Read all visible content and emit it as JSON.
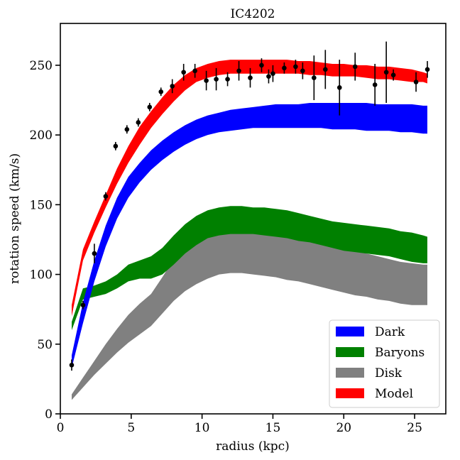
{
  "chart_data": {
    "type": "area",
    "title": "IC4202",
    "xlabel": "radius (kpc)",
    "ylabel": "rotation speed (km/s)",
    "xlim": [
      0,
      27.2
    ],
    "ylim": [
      0,
      280
    ],
    "xticks": [
      0,
      5,
      10,
      15,
      20,
      25
    ],
    "yticks": [
      0,
      50,
      100,
      150,
      200,
      250
    ],
    "grid": false,
    "legend_position": "lower-right",
    "radius": [
      0.8,
      1.6,
      2.4,
      3.2,
      4.0,
      4.8,
      5.6,
      6.4,
      7.2,
      8.0,
      8.8,
      9.6,
      10.4,
      11.2,
      12.0,
      12.8,
      13.6,
      14.4,
      15.2,
      16.0,
      16.8,
      17.6,
      18.4,
      19.2,
      20.0,
      20.8,
      21.6,
      22.4,
      23.2,
      24.0,
      24.8,
      25.6,
      25.9
    ],
    "bands": [
      {
        "name": "Disk",
        "color": "#808080",
        "lower": [
          10,
          19,
          28,
          36,
          44,
          51,
          57,
          63,
          72,
          81,
          88,
          93,
          97,
          100,
          101,
          101,
          100,
          99,
          98,
          96,
          95,
          93,
          91,
          89,
          87,
          85,
          84,
          82,
          81,
          79,
          78,
          78,
          78
        ],
        "upper": [
          14,
          26,
          38,
          50,
          61,
          71,
          79,
          86,
          98,
          111,
          122,
          129,
          134,
          137,
          138,
          138,
          136,
          134,
          132,
          130,
          128,
          126,
          124,
          121,
          119,
          117,
          115,
          113,
          111,
          109,
          108,
          107,
          107
        ]
      },
      {
        "name": "Baryons",
        "color": "#008000",
        "lower": [
          60,
          82,
          84,
          86,
          90,
          95,
          97,
          97,
          100,
          107,
          115,
          121,
          126,
          128,
          129,
          129,
          129,
          128,
          127,
          126,
          124,
          123,
          121,
          119,
          117,
          116,
          115,
          114,
          113,
          111,
          109,
          108,
          108
        ],
        "upper": [
          66,
          90,
          92,
          95,
          100,
          107,
          110,
          113,
          119,
          128,
          136,
          142,
          146,
          148,
          149,
          149,
          148,
          148,
          147,
          146,
          144,
          142,
          140,
          138,
          137,
          136,
          135,
          134,
          133,
          131,
          130,
          128,
          127
        ]
      },
      {
        "name": "Dark",
        "color": "#0000ff",
        "lower": [
          33,
          65,
          95,
          120,
          140,
          155,
          166,
          175,
          182,
          188,
          193,
          197,
          200,
          202,
          203,
          204,
          205,
          205,
          205,
          205,
          205,
          205,
          205,
          204,
          204,
          204,
          203,
          203,
          203,
          202,
          202,
          201,
          201
        ],
        "upper": [
          42,
          80,
          110,
          135,
          155,
          170,
          180,
          189,
          196,
          202,
          207,
          211,
          214,
          216,
          218,
          219,
          220,
          221,
          222,
          222,
          222,
          223,
          223,
          223,
          223,
          223,
          223,
          222,
          222,
          222,
          222,
          221,
          221
        ]
      },
      {
        "name": "Model",
        "color": "#ff0000",
        "lower": [
          70,
          110,
          130,
          148,
          165,
          180,
          193,
          205,
          215,
          224,
          232,
          238,
          241,
          243,
          244,
          244,
          244,
          244,
          244,
          244,
          244,
          243,
          243,
          242,
          242,
          242,
          241,
          240,
          240,
          239,
          238,
          238,
          237
        ],
        "upper": [
          78,
          118,
          138,
          157,
          176,
          192,
          206,
          217,
          227,
          236,
          243,
          248,
          251,
          253,
          254,
          254,
          254,
          254,
          254,
          254,
          253,
          253,
          252,
          251,
          251,
          250,
          250,
          249,
          249,
          248,
          247,
          245,
          244
        ]
      }
    ],
    "legend_order": [
      "Dark",
      "Baryons",
      "Disk",
      "Model"
    ],
    "observed": {
      "name": "observed",
      "color": "#000000",
      "points": [
        {
          "x": 0.8,
          "y": 35,
          "err": 4
        },
        {
          "x": 1.6,
          "y": 78,
          "err": 3
        },
        {
          "x": 2.4,
          "y": 115,
          "err": 7
        },
        {
          "x": 3.2,
          "y": 156,
          "err": 3
        },
        {
          "x": 3.9,
          "y": 192,
          "err": 3
        },
        {
          "x": 4.7,
          "y": 204,
          "err": 3
        },
        {
          "x": 5.5,
          "y": 209,
          "err": 3
        },
        {
          "x": 6.3,
          "y": 220,
          "err": 3
        },
        {
          "x": 7.1,
          "y": 231,
          "err": 3
        },
        {
          "x": 7.9,
          "y": 235,
          "err": 5
        },
        {
          "x": 8.7,
          "y": 245,
          "err": 6
        },
        {
          "x": 9.5,
          "y": 246,
          "err": 5
        },
        {
          "x": 10.3,
          "y": 239,
          "err": 7
        },
        {
          "x": 11.0,
          "y": 240,
          "err": 8
        },
        {
          "x": 11.8,
          "y": 240,
          "err": 5
        },
        {
          "x": 12.6,
          "y": 246,
          "err": 7
        },
        {
          "x": 13.4,
          "y": 241,
          "err": 7
        },
        {
          "x": 14.2,
          "y": 250,
          "err": 5
        },
        {
          "x": 14.7,
          "y": 242,
          "err": 5
        },
        {
          "x": 15.0,
          "y": 244,
          "err": 6
        },
        {
          "x": 15.8,
          "y": 248,
          "err": 4
        },
        {
          "x": 16.6,
          "y": 249,
          "err": 5
        },
        {
          "x": 17.1,
          "y": 246,
          "err": 6
        },
        {
          "x": 17.9,
          "y": 241,
          "err": 16
        },
        {
          "x": 18.7,
          "y": 247,
          "err": 14
        },
        {
          "x": 19.7,
          "y": 234,
          "err": 20
        },
        {
          "x": 20.8,
          "y": 249,
          "err": 10
        },
        {
          "x": 22.2,
          "y": 236,
          "err": 15
        },
        {
          "x": 23.0,
          "y": 245,
          "err": 22
        },
        {
          "x": 23.5,
          "y": 243,
          "err": 4
        },
        {
          "x": 25.1,
          "y": 238,
          "err": 7
        },
        {
          "x": 25.9,
          "y": 247,
          "err": 6
        }
      ]
    }
  }
}
